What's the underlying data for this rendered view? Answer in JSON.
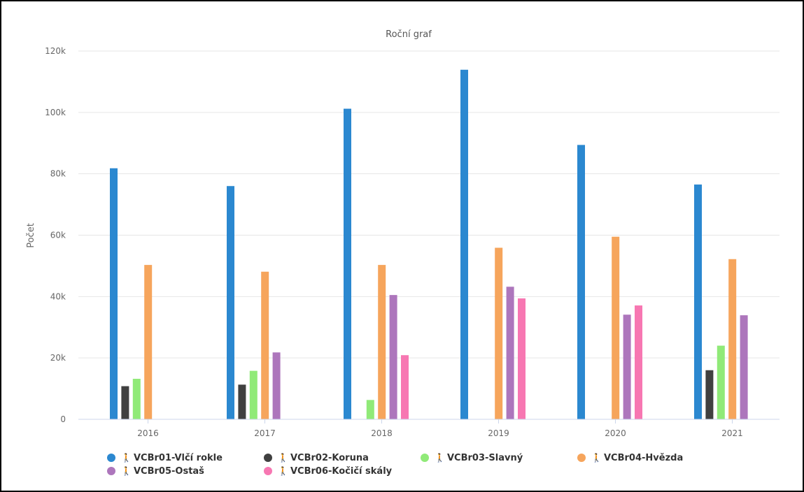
{
  "chart_data": {
    "type": "bar",
    "title": "Roční graf",
    "xlabel": "",
    "ylabel": "Počet",
    "ylim": [
      0,
      120000
    ],
    "yticks": [
      0,
      20000,
      40000,
      60000,
      80000,
      100000,
      120000
    ],
    "ytick_labels": [
      "0",
      "20k",
      "40k",
      "60k",
      "80k",
      "100k",
      "120k"
    ],
    "categories": [
      "2016",
      "2017",
      "2018",
      "2019",
      "2020",
      "2021"
    ],
    "grid": true,
    "legend_position": "bottom",
    "legend_icon": "hiker-icon",
    "legend_icon_glyph": "🚶",
    "series": [
      {
        "name": "VCBr01-Vlčí rokle",
        "color": "#2b88d0",
        "values": [
          81800,
          76000,
          101200,
          113900,
          89400,
          76500
        ]
      },
      {
        "name": "VCBr02-Koruna",
        "color": "#404040",
        "values": [
          10800,
          11300,
          null,
          null,
          null,
          16000
        ]
      },
      {
        "name": "VCBr03-Slavný",
        "color": "#90ea78",
        "values": [
          13200,
          15800,
          6300,
          null,
          null,
          24000
        ]
      },
      {
        "name": "VCBr04-Hvězda",
        "color": "#f6a55c",
        "values": [
          50300,
          48100,
          50300,
          55900,
          59500,
          52200
        ]
      },
      {
        "name": "VCBr05-Ostaš",
        "color": "#ad76bc",
        "values": [
          null,
          21800,
          40500,
          43200,
          34100,
          33900
        ]
      },
      {
        "name": "VCBr06-Kočičí skály",
        "color": "#f777b2",
        "values": [
          null,
          null,
          20900,
          39400,
          37100,
          null
        ]
      }
    ]
  }
}
